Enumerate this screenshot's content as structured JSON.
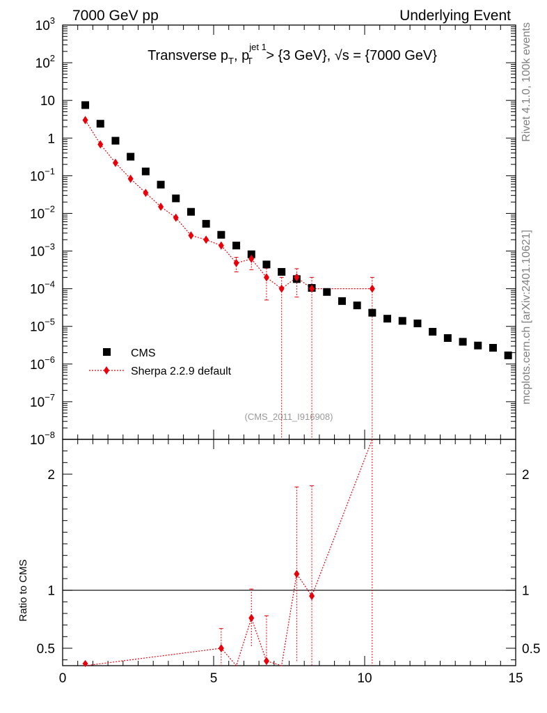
{
  "header": {
    "left": "7000 GeV pp",
    "right": "Underlying Event"
  },
  "side_text": {
    "top": "Rivet 4.1.0,  100k events",
    "bottom": "mcplots.cern.ch [arXiv:2401.10621]"
  },
  "chart_data": {
    "type": "scatter",
    "title": {
      "prefix": "Transverse p",
      "sub1": "T",
      "mid": ", p",
      "sup2": "jet 1",
      "sub2": "T",
      "suffix": " > {3 GeV}, √s = {7000 GeV}"
    },
    "watermark": "(CMS_2011_I916908)",
    "xlim": [
      0,
      15
    ],
    "ylim_main": [
      1e-08,
      1000
    ],
    "ylim_ratio": [
      0.35,
      2.3
    ],
    "yscale_main": "log",
    "xticks": [
      0,
      5,
      10,
      15
    ],
    "yticks_main": [
      {
        "label": "10",
        "exp": "3"
      },
      {
        "label": "10",
        "exp": "2"
      },
      {
        "label": "10",
        "exp": ""
      },
      {
        "label": "1",
        "exp": ""
      },
      {
        "label": "10",
        "exp": "−1"
      },
      {
        "label": "10",
        "exp": "−2"
      },
      {
        "label": "10",
        "exp": "−3"
      },
      {
        "label": "10",
        "exp": "−4"
      },
      {
        "label": "10",
        "exp": "−5"
      },
      {
        "label": "10",
        "exp": "−6"
      },
      {
        "label": "10",
        "exp": "−7"
      },
      {
        "label": "10",
        "exp": "−8"
      }
    ],
    "yticks_ratio": [
      "2",
      "1",
      "0.5"
    ],
    "ratio_ylabel": "Ratio to CMS",
    "legend": {
      "placement": "lower-left",
      "entries": [
        "CMS",
        "Sherpa 2.2.9 default"
      ]
    },
    "colors": {
      "data": "#000000",
      "mc": "#e8000b"
    },
    "series": [
      {
        "name": "CMS",
        "x": [
          0.75,
          1.25,
          1.75,
          2.25,
          2.75,
          3.25,
          3.75,
          4.25,
          4.75,
          5.25,
          5.75,
          6.25,
          6.75,
          7.25,
          7.75,
          8.25,
          8.75,
          9.25,
          9.75,
          10.25,
          10.75,
          11.25,
          11.75,
          12.25,
          12.75,
          13.25,
          13.75,
          14.25,
          14.75
        ],
        "y": [
          7.5,
          2.4,
          0.85,
          0.32,
          0.13,
          0.058,
          0.025,
          0.011,
          0.0053,
          0.0027,
          0.0014,
          0.00082,
          0.00044,
          0.00028,
          0.00018,
          0.000105,
          8.2e-05,
          4.7e-05,
          3.6e-05,
          2.3e-05,
          1.6e-05,
          1.4e-05,
          1.2e-05,
          7.2e-06,
          4.9e-06,
          3.9e-06,
          3.1e-06,
          2.7e-06,
          1.7e-06
        ]
      },
      {
        "name": "Sherpa 2.2.9 default",
        "x": [
          0.75,
          1.25,
          1.75,
          2.25,
          2.75,
          3.25,
          3.75,
          4.25,
          4.75,
          5.25,
          5.75,
          6.25,
          6.75,
          7.25,
          7.75,
          8.25,
          10.25
        ],
        "y": [
          3.0,
          0.68,
          0.22,
          0.083,
          0.035,
          0.015,
          0.0077,
          0.0026,
          0.002,
          0.0014,
          0.00048,
          0.00062,
          0.0002,
          0.0001,
          0.0002,
          0.0001,
          0.0001
        ],
        "yerr_low": [
          0,
          0,
          0,
          0,
          0,
          0,
          0,
          0,
          0,
          0,
          0.0002,
          0.0003,
          0.00015,
          0.0001,
          0.00014,
          0.0001,
          0.0001
        ],
        "yerr_high": [
          0,
          0,
          0,
          0,
          0,
          0,
          0,
          0,
          0,
          0,
          0.0002,
          0.0003,
          0.00015,
          0.0001,
          0.00014,
          0.0001,
          0.0001
        ]
      }
    ],
    "ratio": {
      "x": [
        0.75,
        5.25,
        5.75,
        6.25,
        6.75,
        7.25,
        7.75,
        8.25,
        10.25
      ],
      "y": [
        0.34,
        0.5,
        0.3,
        0.76,
        0.39,
        0.3,
        1.14,
        0.95,
        4.0
      ],
      "yerr": [
        0,
        0.17,
        0,
        0.25,
        0.39,
        0,
        0.75,
        0.95,
        4.0
      ]
    }
  }
}
